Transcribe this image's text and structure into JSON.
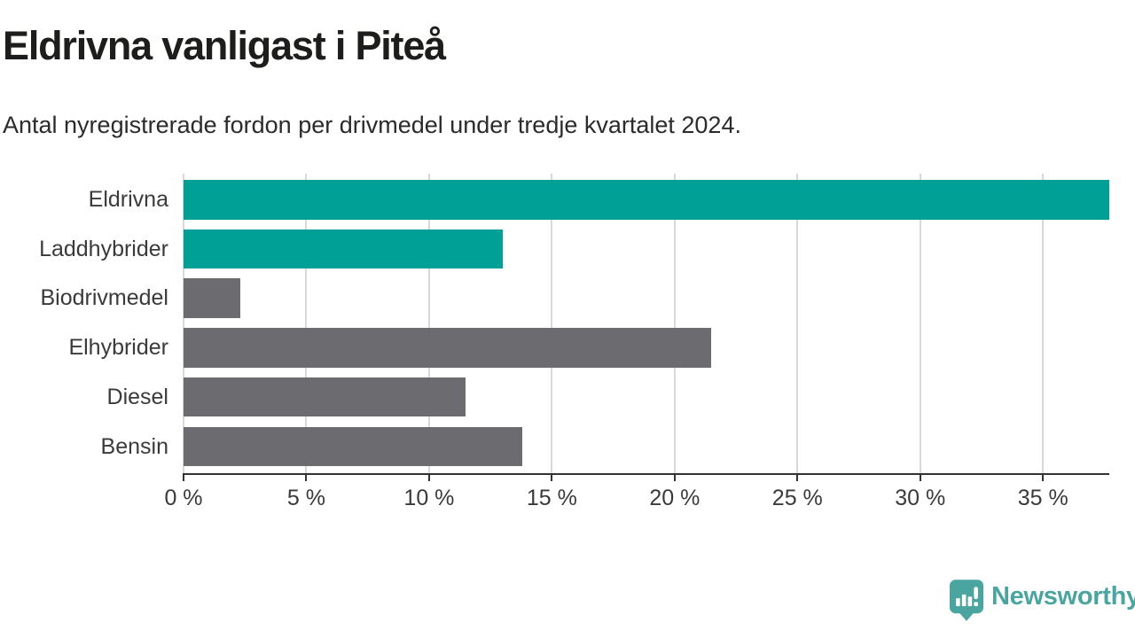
{
  "header": {
    "title": "Eldrivna vanligast i Piteå",
    "subtitle": "Antal nyregistrerade fordon per drivmedel under tredje kvartalet 2024."
  },
  "chart_data": {
    "type": "bar",
    "orientation": "horizontal",
    "title": "Eldrivna vanligast i Piteå",
    "subtitle": "Antal nyregistrerade fordon per drivmedel under tredje kvartalet 2024.",
    "categories": [
      "Eldrivna",
      "Laddhybrider",
      "Biodrivmedel",
      "Elhybrider",
      "Diesel",
      "Bensin"
    ],
    "values": [
      37.7,
      13.0,
      2.3,
      21.5,
      11.5,
      13.8
    ],
    "unit": "%",
    "xlim": [
      0,
      37.7
    ],
    "xticks": [
      0,
      5,
      10,
      15,
      20,
      25,
      30,
      35
    ],
    "xtick_labels": [
      "0 %",
      "5 %",
      "10 %",
      "15 %",
      "20 %",
      "25 %",
      "30 %",
      "35 %"
    ],
    "bar_colors": [
      "#00a096",
      "#00a096",
      "#6c6c70",
      "#6c6c70",
      "#6c6c70",
      "#6c6c70"
    ],
    "grid": true,
    "legend": false,
    "xlabel": "",
    "ylabel": ""
  },
  "colors": {
    "accent_teal": "#00a096",
    "neutral_gray": "#6c6c70",
    "gridline": "#d8d8d8",
    "axis": "#333333",
    "label_text": "#3a3a3a",
    "title_text": "#1d1d1b",
    "brand_teal": "#4aa49f"
  },
  "footer": {
    "brand": "Newsworthy"
  }
}
